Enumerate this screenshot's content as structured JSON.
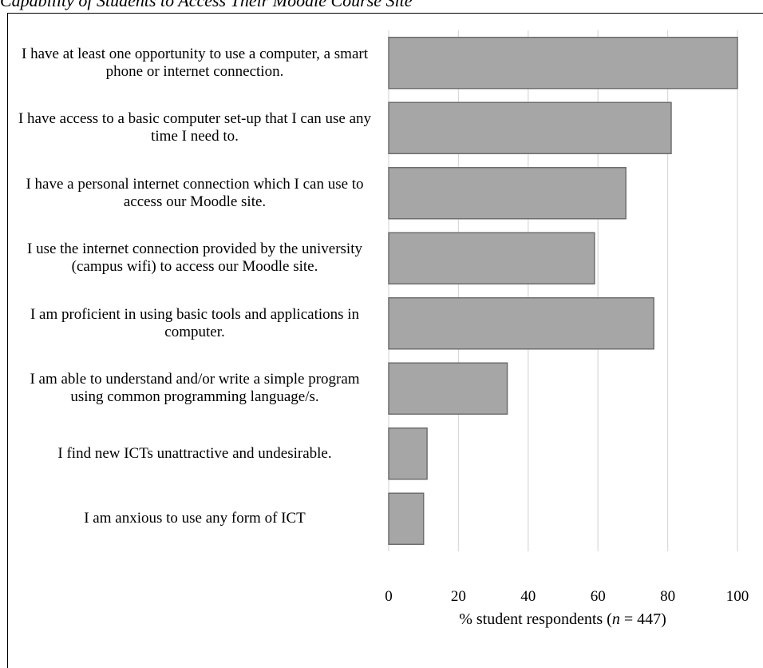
{
  "caption": "Capability of Students to Access Their Moodle Course Site",
  "chart_data": {
    "type": "bar",
    "orientation": "horizontal",
    "categories": [
      "I have at least one opportunity to use a computer, a smart phone or internet connection.",
      "I have access to a basic computer set-up that I can use any time I need to.",
      "I have a personal internet connection which I can use to access our Moodle site.",
      "I use the internet connection provided by the university (campus wifi) to access our Moodle site.",
      "I am proficient in using basic tools and applications in computer.",
      "I am able to understand and/or write a simple program using common programming language/s.",
      "I find new ICTs unattractive and undesirable.",
      "I am anxious to use any form of ICT"
    ],
    "values": [
      100,
      81,
      68,
      59,
      76,
      34,
      11,
      10
    ],
    "xlim": [
      0,
      100
    ],
    "xticks": [
      0,
      20,
      40,
      60,
      80,
      100
    ],
    "xlabel_prefix": "% student respondents (",
    "xlabel_n": "n",
    "xlabel_suffix": " = 447)",
    "bar_color": "#a6a6a6",
    "bar_edge_color": "#6e6e6e",
    "grid": true,
    "grid_color": "#d9d9d9"
  }
}
